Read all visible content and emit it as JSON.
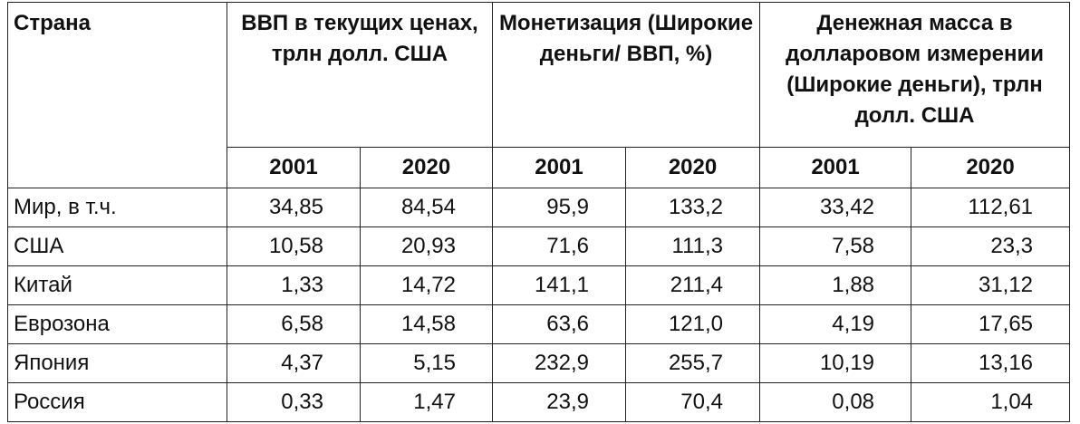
{
  "table": {
    "corner": "Страна",
    "groups": [
      {
        "title": "ВВП в текущих ценах, трлн долл. США",
        "years": [
          "2001",
          "2020"
        ]
      },
      {
        "title": "Монетизация (Широкие деньги/ ВВП, %)",
        "years": [
          "2001",
          "2020"
        ]
      },
      {
        "title": "Денежная масса в долларовом измерении (Широкие деньги), трлн долл. США",
        "years": [
          "2001",
          "2020"
        ]
      }
    ],
    "rows": [
      [
        "Мир, в т.ч.",
        "34,85",
        "84,54",
        "95,9",
        "133,2",
        "33,42",
        "112,61"
      ],
      [
        "США",
        "10,58",
        "20,93",
        "71,6",
        "111,3",
        "7,58",
        "23,3"
      ],
      [
        "Китай",
        "1,33",
        "14,72",
        "141,1",
        "211,4",
        "1,88",
        "31,12"
      ],
      [
        "Еврозона",
        "6,58",
        "14,58",
        "63,6",
        "121,0",
        "4,19",
        "17,65"
      ],
      [
        "Япония",
        "4,37",
        "5,15",
        "232,9",
        "255,7",
        "10,19",
        "13,16"
      ],
      [
        "Россия",
        "0,33",
        "1,47",
        "23,9",
        "70,4",
        "0,08",
        "1,04"
      ]
    ]
  }
}
